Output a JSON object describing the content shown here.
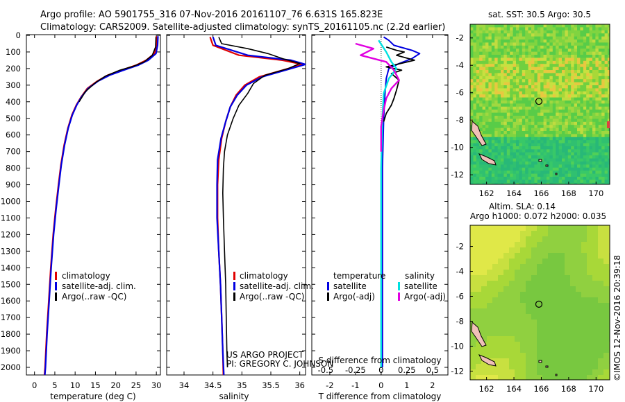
{
  "title": {
    "line1": "Argo profile: AO 5901755_316 07-Nov-2016 20161107_76 6.631S 165.823E",
    "line2": "Climatology: CARS2009. Satellite-adjusted climatology: synTS_20161105.nc (2.2d earlier)"
  },
  "chart_data": [
    {
      "type": "line",
      "id": "temperature",
      "xlabel": "temperature (deg C)",
      "ylabel": "",
      "xlim": [
        -2,
        31
      ],
      "ylim": [
        0,
        2060
      ],
      "y_reversed": true,
      "xticks": [
        0,
        5,
        10,
        15,
        20,
        25,
        30
      ],
      "yticks": [
        0,
        100,
        200,
        300,
        400,
        500,
        600,
        700,
        800,
        900,
        1000,
        1100,
        1200,
        1300,
        1400,
        1500,
        1600,
        1700,
        1800,
        1900,
        2000
      ],
      "legend": {
        "entries": [
          "climatology",
          "satellite-adj. clim.",
          "Argo(..raw -QC)"
        ],
        "colors": [
          "#e00000",
          "#0000e0",
          "#000000"
        ],
        "placement": "lower-center"
      },
      "series": [
        {
          "name": "climatology",
          "color": "#e00000",
          "points": [
            [
              30,
              5
            ],
            [
              30,
              60
            ],
            [
              29.5,
              110
            ],
            [
              27.5,
              150
            ],
            [
              25,
              180
            ],
            [
              22,
              205
            ],
            [
              18,
              240
            ],
            [
              15.5,
              275
            ],
            [
              13,
              320
            ],
            [
              11.5,
              370
            ],
            [
              10.3,
              420
            ],
            [
              9.2,
              480
            ],
            [
              8.2,
              560
            ],
            [
              7.3,
              660
            ],
            [
              6.5,
              780
            ],
            [
              5.9,
              900
            ],
            [
              5.2,
              1050
            ],
            [
              4.6,
              1200
            ],
            [
              4,
              1400
            ],
            [
              3.5,
              1600
            ],
            [
              3,
              1800
            ],
            [
              2.6,
              2000
            ],
            [
              2.4,
              2060
            ]
          ]
        },
        {
          "name": "satellite-adj. clim.",
          "color": "#0000e0",
          "points": [
            [
              30.4,
              5
            ],
            [
              30.3,
              60
            ],
            [
              29.9,
              110
            ],
            [
              28,
              150
            ],
            [
              25.5,
              180
            ],
            [
              22.5,
              205
            ],
            [
              18.5,
              240
            ],
            [
              15.7,
              275
            ],
            [
              13.2,
              320
            ],
            [
              11.6,
              370
            ],
            [
              10.4,
              420
            ],
            [
              9.3,
              480
            ],
            [
              8.3,
              560
            ],
            [
              7.4,
              660
            ],
            [
              6.6,
              780
            ],
            [
              6,
              900
            ],
            [
              5.3,
              1050
            ],
            [
              4.7,
              1200
            ],
            [
              4.1,
              1400
            ],
            [
              3.6,
              1600
            ],
            [
              3.1,
              1800
            ],
            [
              2.7,
              2000
            ],
            [
              2.5,
              2060
            ]
          ]
        },
        {
          "name": "Argo(..raw -QC)",
          "color": "#000000",
          "points": [
            [
              29.9,
              10
            ],
            [
              29.8,
              70
            ],
            [
              29,
              120
            ],
            [
              27,
              160
            ],
            [
              24.5,
              185
            ],
            [
              21,
              210
            ],
            [
              17.5,
              245
            ],
            [
              15,
              285
            ],
            [
              12.5,
              340
            ],
            [
              11,
              400
            ]
          ]
        }
      ]
    },
    {
      "type": "line",
      "id": "salinity",
      "xlabel": "salinity",
      "xlim": [
        33.7,
        36.1
      ],
      "ylim": [
        0,
        2060
      ],
      "y_reversed": true,
      "xticks": [
        34,
        34.5,
        35,
        35.5,
        36
      ],
      "xticklabels": [
        "34",
        "34.5",
        "35",
        "35.5",
        "36"
      ],
      "legend": {
        "entries": [
          "climatology",
          "satellite-adj. clim.",
          "Argo(..raw -QC)"
        ],
        "colors": [
          "#e00000",
          "#0000e0",
          "#000000"
        ],
        "placement": "lower-center"
      },
      "annotations": [
        "US ARGO PROJECT",
        "PI: GREGORY C. JOHNSON"
      ],
      "series": [
        {
          "name": "climatology",
          "color": "#e00000",
          "points": [
            [
              34.45,
              10
            ],
            [
              34.5,
              60
            ],
            [
              34.95,
              120
            ],
            [
              35.7,
              150
            ],
            [
              36.05,
              175
            ],
            [
              35.7,
              210
            ],
            [
              35.3,
              250
            ],
            [
              35.05,
              300
            ],
            [
              34.9,
              360
            ],
            [
              34.8,
              430
            ],
            [
              34.72,
              520
            ],
            [
              34.65,
              620
            ],
            [
              34.6,
              750
            ],
            [
              34.58,
              900
            ],
            [
              34.58,
              1100
            ],
            [
              34.6,
              1300
            ],
            [
              34.63,
              1500
            ],
            [
              34.65,
              1700
            ],
            [
              34.67,
              1900
            ],
            [
              34.68,
              2060
            ]
          ]
        },
        {
          "name": "satellite-adj. clim.",
          "color": "#0000e0",
          "points": [
            [
              34.5,
              10
            ],
            [
              34.55,
              60
            ],
            [
              35.1,
              120
            ],
            [
              35.85,
              150
            ],
            [
              36.1,
              175
            ],
            [
              35.75,
              210
            ],
            [
              35.35,
              250
            ],
            [
              35.08,
              300
            ],
            [
              34.92,
              360
            ],
            [
              34.8,
              430
            ],
            [
              34.72,
              520
            ],
            [
              34.64,
              620
            ],
            [
              34.58,
              750
            ],
            [
              34.57,
              900
            ],
            [
              34.57,
              1100
            ],
            [
              34.6,
              1300
            ],
            [
              34.63,
              1500
            ],
            [
              34.65,
              1700
            ],
            [
              34.67,
              1900
            ],
            [
              34.69,
              2060
            ]
          ]
        },
        {
          "name": "Argo(..raw -QC)",
          "color": "#000000",
          "points": [
            [
              34.6,
              10
            ],
            [
              34.65,
              50
            ],
            [
              35.1,
              80
            ],
            [
              35.45,
              110
            ],
            [
              35.7,
              140
            ],
            [
              36,
              170
            ],
            [
              35.8,
              200
            ],
            [
              35.4,
              240
            ],
            [
              35.2,
              290
            ],
            [
              35.1,
              350
            ],
            [
              34.95,
              420
            ],
            [
              34.85,
              500
            ],
            [
              34.75,
              600
            ],
            [
              34.7,
              700
            ],
            [
              34.68,
              800
            ],
            [
              34.67,
              950
            ],
            [
              34.68,
              1100
            ],
            [
              34.7,
              1300
            ],
            [
              34.72,
              1500
            ],
            [
              34.73,
              1700
            ],
            [
              34.74,
              1900
            ],
            [
              34.75,
              2000
            ]
          ]
        }
      ]
    },
    {
      "type": "line",
      "id": "difference",
      "xlabel": "T difference from climatology",
      "xlabel_top": "S difference from climatology",
      "xlim": [
        -2.7,
        2.6
      ],
      "ylim": [
        0,
        2060
      ],
      "y_reversed": true,
      "xticks": [
        -2,
        -1,
        0,
        1,
        2
      ],
      "s_ticklabels": [
        "-0.5",
        "-0.25",
        "0",
        "0.25",
        "0.5"
      ],
      "legend_temperature": {
        "title": "temperature",
        "entries": [
          "satellite",
          "Argo(-adj)"
        ],
        "colors": [
          "#0000e0",
          "#000000"
        ]
      },
      "legend_salinity": {
        "title": "salinity",
        "entries": [
          "satellite",
          "Argo(-adj)"
        ],
        "colors": [
          "#00e0e0",
          "#e000e0"
        ]
      },
      "series": [
        {
          "name": "T satellite",
          "color": "#0000e0",
          "points": [
            [
              0.1,
              10
            ],
            [
              0.3,
              30
            ],
            [
              0.5,
              60
            ],
            [
              1.2,
              90
            ],
            [
              1.5,
              110
            ],
            [
              1.2,
              140
            ],
            [
              0.7,
              170
            ],
            [
              0.3,
              200
            ],
            [
              0.2,
              260
            ],
            [
              0.15,
              350
            ],
            [
              0.1,
              500
            ],
            [
              0.05,
              800
            ],
            [
              0.05,
              1200
            ],
            [
              0.05,
              1600
            ],
            [
              0.05,
              2000
            ]
          ]
        },
        {
          "name": "T Argo(-adj)",
          "color": "#000000",
          "points": [
            [
              0.2,
              70
            ],
            [
              0.6,
              90
            ],
            [
              0.9,
              100
            ],
            [
              0.6,
              120
            ],
            [
              1.3,
              150
            ],
            [
              0.2,
              190
            ],
            [
              0.8,
              210
            ],
            [
              0.4,
              230
            ],
            [
              0.7,
              270
            ],
            [
              0.6,
              330
            ],
            [
              0.5,
              380
            ],
            [
              0.4,
              420
            ],
            [
              0.2,
              470
            ],
            [
              0.1,
              520
            ]
          ]
        },
        {
          "name": "S satellite",
          "color": "#00e0e0",
          "points": [
            [
              -0.1,
              30
            ],
            [
              0.2,
              100
            ],
            [
              0.4,
              160
            ],
            [
              0.6,
              200
            ],
            [
              0.3,
              260
            ],
            [
              0.1,
              350
            ],
            [
              0.05,
              500
            ],
            [
              0,
              800
            ],
            [
              0,
              1200
            ],
            [
              0,
              1600
            ],
            [
              0,
              2000
            ]
          ]
        },
        {
          "name": "S Argo(-adj)",
          "color": "#e000e0",
          "points": [
            [
              -1,
              50
            ],
            [
              -0.3,
              80
            ],
            [
              -0.8,
              120
            ],
            [
              0.2,
              160
            ],
            [
              0.5,
              210
            ],
            [
              0.7,
              270
            ],
            [
              0.4,
              320
            ],
            [
              0.2,
              380
            ],
            [
              0.1,
              450
            ],
            [
              0,
              550
            ],
            [
              0,
              700
            ]
          ]
        }
      ]
    },
    {
      "type": "heatmap",
      "id": "sst-map",
      "title": "sat. SST: 30.5 Argo: 30.5",
      "xlim": [
        160.8,
        171
      ],
      "ylim": [
        -12.7,
        -1
      ],
      "xticks": [
        162,
        164,
        166,
        168,
        170
      ],
      "yticks": [
        -2,
        -4,
        -6,
        -8,
        -10,
        -12
      ],
      "marker": {
        "lon": 165.823,
        "lat": -6.631
      }
    },
    {
      "type": "heatmap",
      "id": "sla-map",
      "title_line1": "Altim. SLA: 0.14",
      "title_line2": "Argo h1000: 0.072 h2000: 0.035",
      "xlim": [
        160.8,
        171
      ],
      "ylim": [
        -12.7,
        -0.3
      ],
      "xticks": [
        162,
        164,
        166,
        168,
        170
      ],
      "yticks": [
        -2,
        -4,
        -6,
        -8,
        -10,
        -12
      ],
      "marker": {
        "lon": 165.823,
        "lat": -6.631
      }
    }
  ],
  "credit": "©IMOS 12-Nov-2016 20:39:18"
}
